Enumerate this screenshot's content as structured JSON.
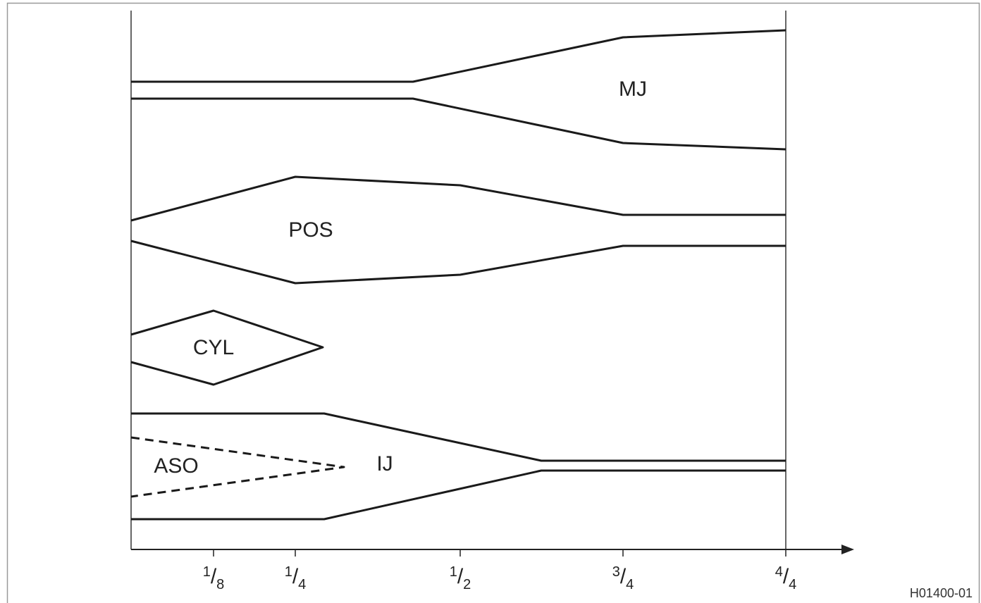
{
  "labels": {
    "mj": "MJ",
    "pos": "POS",
    "cyl": "CYL",
    "aso": "ASO",
    "ij": "IJ"
  },
  "axis": {
    "ticks": [
      "1/8",
      "1/4",
      "1/2",
      "3/4",
      "4/4"
    ]
  },
  "footer": {
    "code": "H01400-01"
  }
}
